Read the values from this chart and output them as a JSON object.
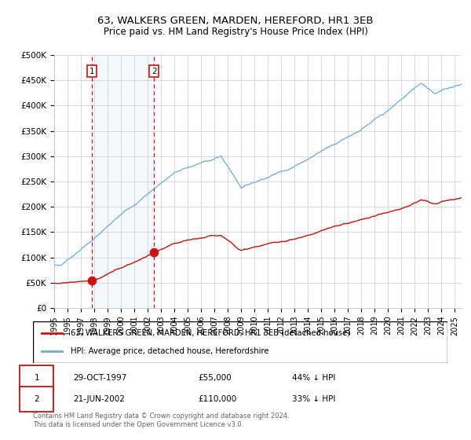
{
  "title": "63, WALKERS GREEN, MARDEN, HEREFORD, HR1 3EB",
  "subtitle": "Price paid vs. HM Land Registry's House Price Index (HPI)",
  "ylim": [
    0,
    500000
  ],
  "yticks": [
    0,
    50000,
    100000,
    150000,
    200000,
    250000,
    300000,
    350000,
    400000,
    450000,
    500000
  ],
  "ytick_labels": [
    "£0",
    "£50K",
    "£100K",
    "£150K",
    "£200K",
    "£250K",
    "£300K",
    "£350K",
    "£400K",
    "£450K",
    "£500K"
  ],
  "xlim_start": 1995.0,
  "xlim_end": 2025.5,
  "xticks": [
    1995,
    1996,
    1997,
    1998,
    1999,
    2000,
    2001,
    2002,
    2003,
    2004,
    2005,
    2006,
    2007,
    2008,
    2009,
    2010,
    2011,
    2012,
    2013,
    2014,
    2015,
    2016,
    2017,
    2018,
    2019,
    2020,
    2021,
    2022,
    2023,
    2024,
    2025
  ],
  "hpi_color": "#6baed6",
  "price_color": "#cc1111",
  "sale1_date": 1997.83,
  "sale1_price": 55000,
  "sale1_label": "1",
  "sale2_date": 2002.47,
  "sale2_price": 110000,
  "sale2_label": "2",
  "legend_line1": "63, WALKERS GREEN, MARDEN, HEREFORD, HR1 3EB (detached house)",
  "legend_line2": "HPI: Average price, detached house, Herefordshire",
  "table_row1_box": "1",
  "table_row1_date": "29-OCT-1997",
  "table_row1_price": "£55,000",
  "table_row1_hpi": "44% ↓ HPI",
  "table_row2_box": "2",
  "table_row2_date": "21-JUN-2002",
  "table_row2_price": "£110,000",
  "table_row2_hpi": "33% ↓ HPI",
  "footnote": "Contains HM Land Registry data © Crown copyright and database right 2024.\nThis data is licensed under the Open Government Licence v3.0.",
  "background_color": "#ffffff",
  "grid_color": "#cccccc",
  "shade_color": "#dce9f5"
}
